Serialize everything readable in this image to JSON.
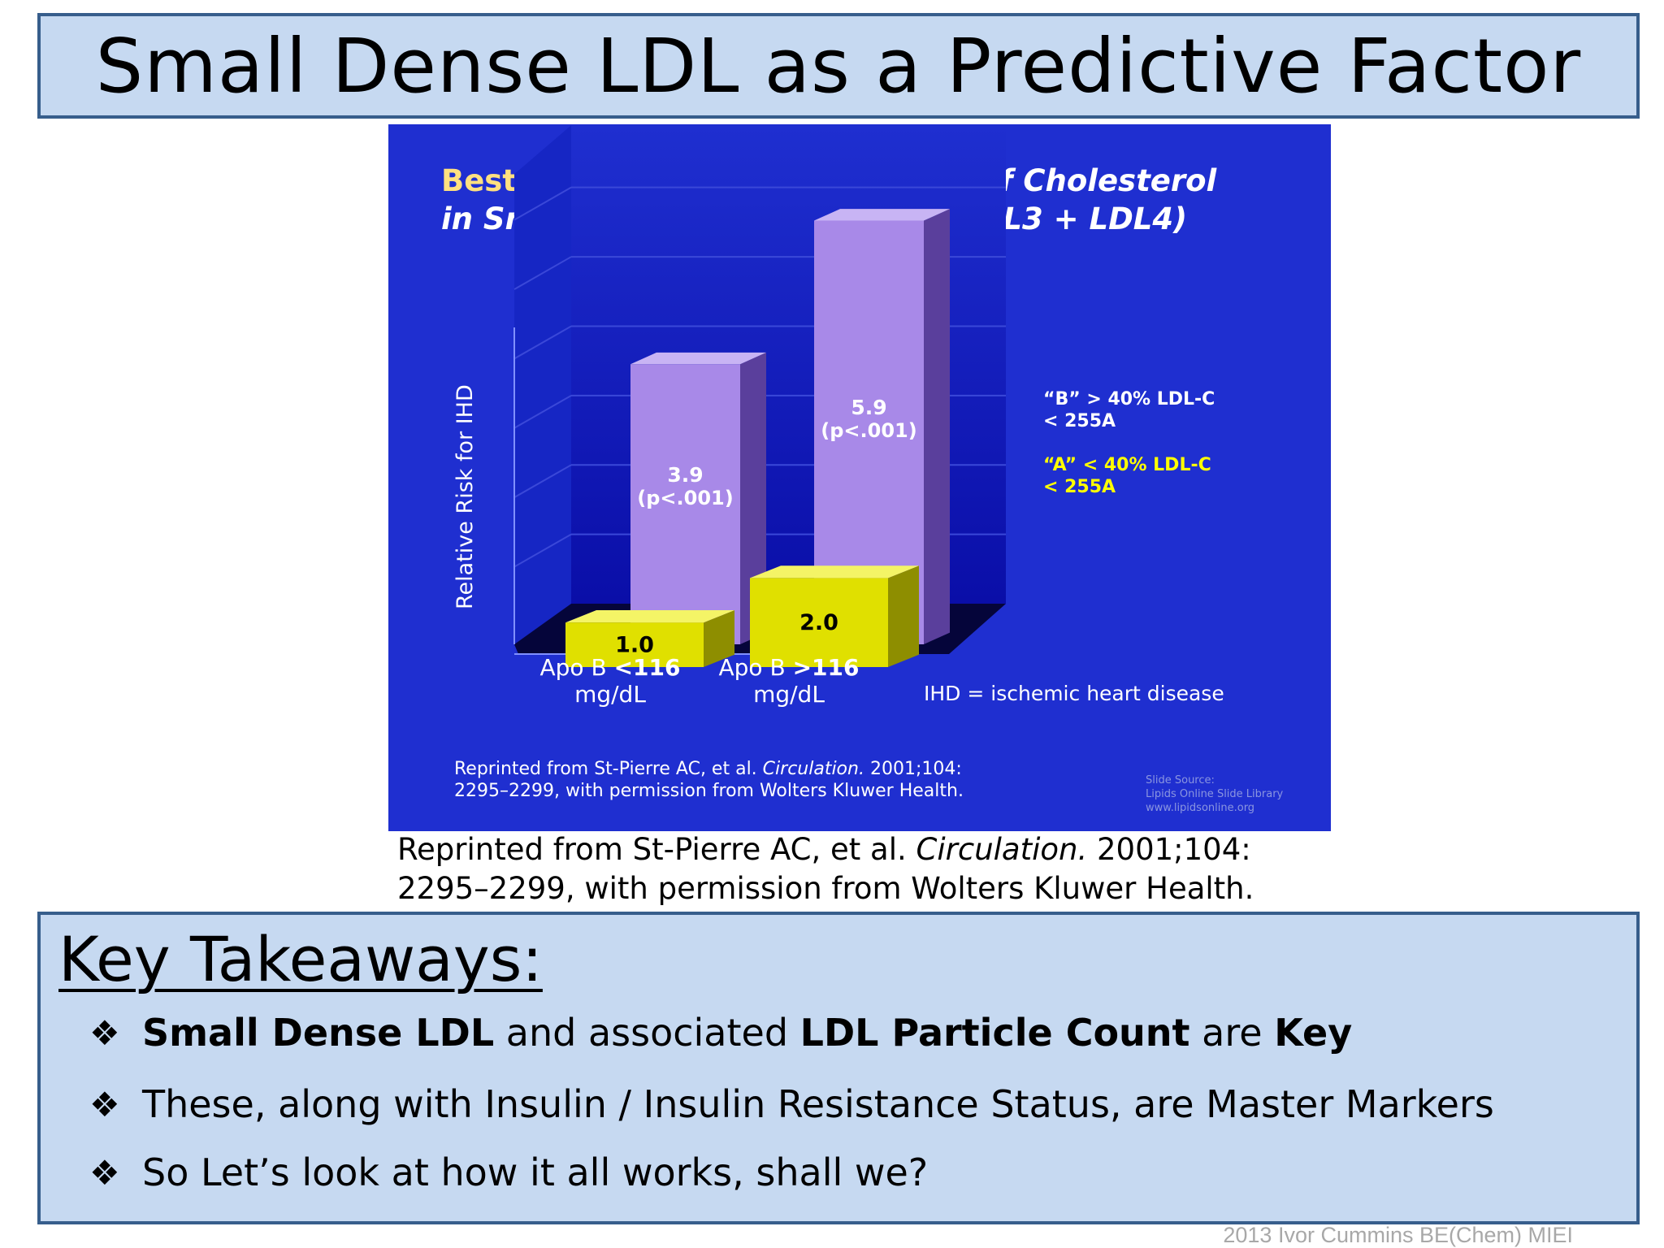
{
  "title": "Small Dense LDL as a Predictive Factor",
  "chart_data": {
    "type": "bar",
    "title_line1_bold": "Best Risk Predictor:",
    "title_line1_italic": "Proportion of Cholesterol",
    "title_line2": "in Small, Dense LDL Particles (LDL3 + LDL4)",
    "ylabel": "Relative Risk for IHD",
    "ylim": [
      0,
      7
    ],
    "categories": [
      "Apo B <116 mg/dL",
      "Apo B >116 mg/dL"
    ],
    "category_lines": [
      [
        "Apo B ",
        "<116",
        "mg/dL"
      ],
      [
        "Apo B ",
        ">116",
        "mg/dL"
      ]
    ],
    "series": [
      {
        "name": "\"A\" < 40% LDL-C < 255A",
        "values": [
          1.0,
          2.0
        ],
        "labels": [
          "1.0",
          "2.0"
        ],
        "pvalues": [
          "",
          ""
        ],
        "color": "#e0e000"
      },
      {
        "name": "\"B\" > 40% LDL-C < 255A",
        "values": [
          3.9,
          5.9
        ],
        "labels": [
          "3.9",
          "5.9"
        ],
        "pvalues": [
          "(p<.001)",
          "(p<.001)"
        ],
        "color": "#a889e8"
      }
    ],
    "legend": [
      {
        "line1": "“B”  > 40% LDL-C",
        "line2": "< 255A",
        "color": "#ffffff"
      },
      {
        "line1": "“A”  < 40% LDL-C",
        "line2": "< 255A",
        "color": "#ffff00"
      }
    ],
    "legend_placement": "right",
    "footnote": "IHD = ischemic heart disease",
    "credit_line1_a": "Reprinted from St-Pierre AC, et al. ",
    "credit_line1_journal": "Circulation.",
    "credit_line1_b": " 2001;104:",
    "credit_line2": "2295–2299, with permission from Wolters Kluwer Health.",
    "source_line1": "Slide Source:",
    "source_line2": "Lipids Online Slide Library",
    "source_line3": "www.lipidsonline.org",
    "colors": {
      "background": "#1f2fd0",
      "title": "#ffe080",
      "series_a": "#e0e000",
      "series_b": "#a889e8"
    }
  },
  "caption": {
    "a": "Reprinted from St-Pierre AC, et al. ",
    "journal": "Circulation.",
    "b": " 2001;104:",
    "line2": "2295–2299, with permission from Wolters Kluwer Health."
  },
  "takeaways": {
    "heading": "Key Takeaways:",
    "bullet1": {
      "bold1": "Small Dense LDL",
      "text1": " and associated ",
      "bold2": "LDL Particle Count",
      "text2": " are ",
      "bold3": "Key"
    },
    "bullet2": "These, along with Insulin / Insulin Resistance Status, are Master Markers",
    "bullet3": "So Let’s look at how it all works, shall we?",
    "bullet_glyph": "❖"
  },
  "footer": "2013 Ivor Cummins BE(Chem) MIEI"
}
